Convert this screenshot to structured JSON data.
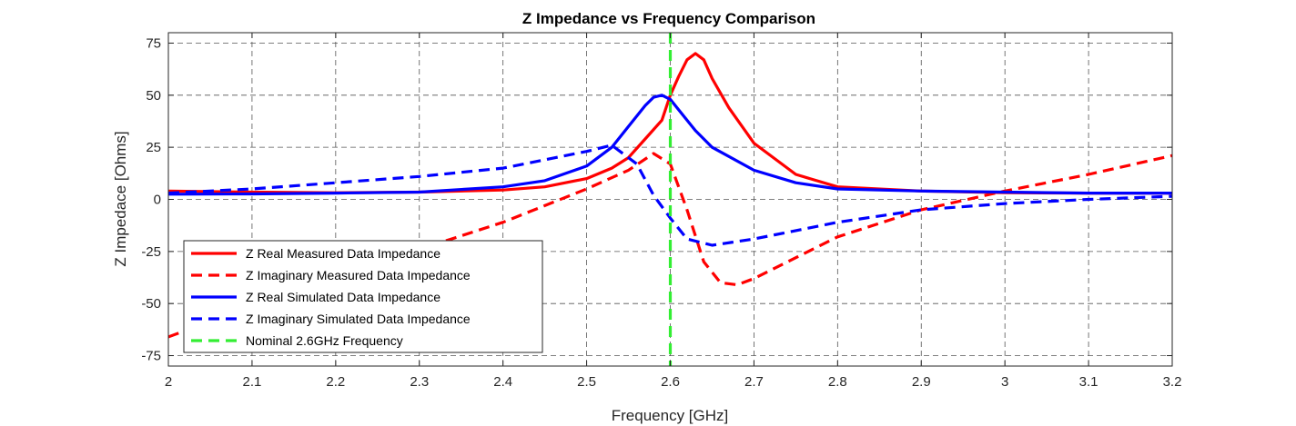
{
  "chart_data": {
    "type": "line",
    "title": "Z Impedance vs Frequency Comparison",
    "xlabel": "Frequency [GHz]",
    "ylabel": "Z Impedace [Ohms]",
    "xlim": [
      2,
      3.2
    ],
    "ylim": [
      -80,
      80
    ],
    "xticks": [
      2,
      2.1,
      2.2,
      2.3,
      2.4,
      2.5,
      2.6,
      2.7,
      2.8,
      2.9,
      3,
      3.1,
      3.2
    ],
    "xtick_labels": [
      "2",
      "2.1",
      "2.2",
      "2.3",
      "2.4",
      "2.5",
      "2.6",
      "2.7",
      "2.8",
      "2.9",
      "3",
      "3.1",
      "3.2"
    ],
    "yticks": [
      -75,
      -50,
      -25,
      0,
      25,
      50,
      75
    ],
    "ytick_labels": [
      "-75",
      "-50",
      "-25",
      "0",
      "25",
      "50",
      "75"
    ],
    "grid": true,
    "legend_position": "bottom-left",
    "series": [
      {
        "name": "Z Real Measured Data Impedance",
        "color": "#ff0000",
        "dash": "solid",
        "x": [
          2.0,
          2.1,
          2.2,
          2.3,
          2.4,
          2.45,
          2.5,
          2.53,
          2.55,
          2.57,
          2.59,
          2.6,
          2.61,
          2.62,
          2.63,
          2.64,
          2.65,
          2.67,
          2.7,
          2.75,
          2.8,
          2.9,
          3.0,
          3.1,
          3.2
        ],
        "y": [
          4,
          3.5,
          3.2,
          3.5,
          4.5,
          6,
          10,
          15,
          20,
          29,
          38,
          50,
          59,
          67,
          70,
          67,
          58,
          44,
          27,
          12,
          6,
          4,
          3.2,
          3,
          3
        ]
      },
      {
        "name": "Z Imaginary Measured Data Impedance",
        "color": "#ff0000",
        "dash": "dashed",
        "x": [
          2.0,
          2.1,
          2.2,
          2.3,
          2.4,
          2.5,
          2.55,
          2.58,
          2.6,
          2.62,
          2.64,
          2.66,
          2.68,
          2.7,
          2.75,
          2.8,
          2.9,
          3.0,
          3.1,
          3.2
        ],
        "y": [
          -66,
          -51,
          -36,
          -24,
          -11,
          5,
          14,
          22,
          17,
          -5,
          -30,
          -40,
          -41,
          -38,
          -28,
          -18,
          -5,
          4,
          12,
          21
        ]
      },
      {
        "name": "Z Real Simulated Data Impedance",
        "color": "#0000ff",
        "dash": "solid",
        "x": [
          2.0,
          2.1,
          2.2,
          2.3,
          2.4,
          2.45,
          2.5,
          2.53,
          2.55,
          2.57,
          2.58,
          2.59,
          2.6,
          2.61,
          2.63,
          2.65,
          2.7,
          2.75,
          2.8,
          2.9,
          3.0,
          3.1,
          3.2
        ],
        "y": [
          2.5,
          2.6,
          3,
          3.5,
          6,
          9,
          16,
          25,
          35,
          45,
          49,
          50,
          48,
          43,
          33,
          25,
          14,
          8,
          5,
          4,
          3.5,
          3,
          3
        ]
      },
      {
        "name": "Z Imaginary Simulated Data Impedance",
        "color": "#0000ff",
        "dash": "dashed",
        "x": [
          2.0,
          2.1,
          2.2,
          2.3,
          2.4,
          2.45,
          2.5,
          2.53,
          2.56,
          2.58,
          2.6,
          2.62,
          2.65,
          2.7,
          2.8,
          2.9,
          3.0,
          3.1,
          3.2
        ],
        "y": [
          3,
          5,
          8,
          11,
          15,
          19,
          23,
          26,
          17,
          2,
          -9,
          -19,
          -22,
          -19,
          -11,
          -5,
          -2,
          0,
          1.5
        ]
      }
    ],
    "reference_line": {
      "name": "Nominal 2.6GHz Frequency",
      "color": "#33ee33",
      "dash": "dashed",
      "x": 2.6
    }
  }
}
